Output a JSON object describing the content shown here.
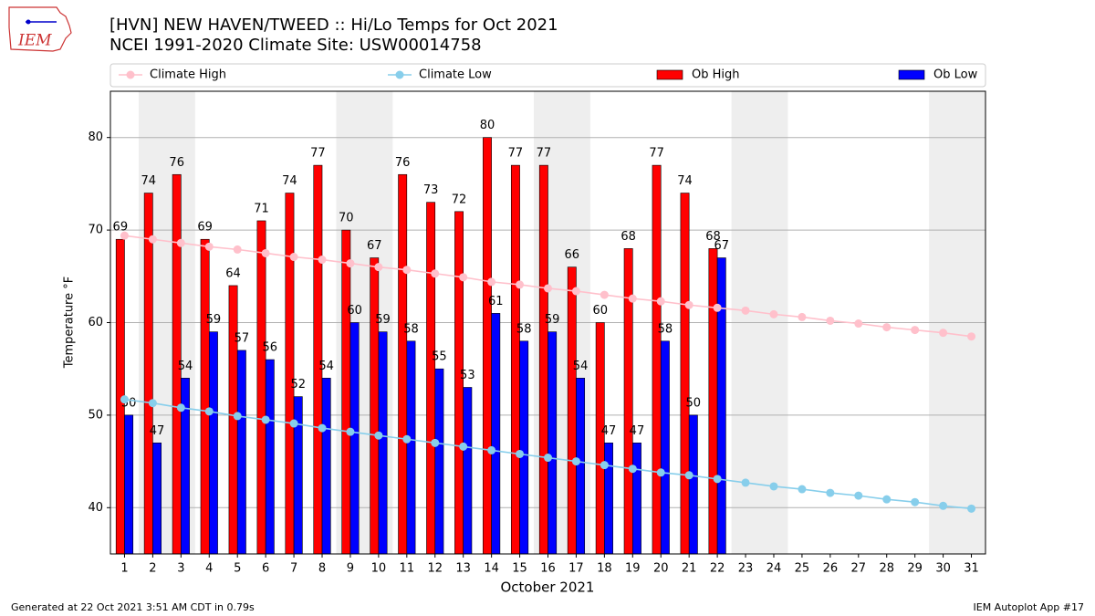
{
  "chart_data": {
    "type": "bar",
    "title": "[HVN] NEW HAVEN/TWEED :: Hi/Lo Temps for Oct 2021",
    "subtitle": "NCEI 1991-2020 Climate Site: USW00014758",
    "logo_text": "IEM",
    "x_label": "October 2021",
    "y_label": "Temperature °F",
    "footer_left": "Generated at 22 Oct 2021 3:51 AM CDT in 0.79s",
    "footer_right": "IEM Autoplot App #17",
    "x": [
      1,
      2,
      3,
      4,
      5,
      6,
      7,
      8,
      9,
      10,
      11,
      12,
      13,
      14,
      15,
      16,
      17,
      18,
      19,
      20,
      21,
      22,
      23,
      24,
      25,
      26,
      27,
      28,
      29,
      30,
      31
    ],
    "series": [
      {
        "name": "Climate High",
        "kind": "line",
        "color": "#ffc0cb",
        "values": [
          69.4,
          69.0,
          68.6,
          68.2,
          67.9,
          67.5,
          67.1,
          66.8,
          66.4,
          66.0,
          65.7,
          65.3,
          64.9,
          64.4,
          64.1,
          63.7,
          63.4,
          63.0,
          62.6,
          62.3,
          61.9,
          61.6,
          61.3,
          60.9,
          60.6,
          60.2,
          59.9,
          59.5,
          59.2,
          58.9,
          58.5
        ]
      },
      {
        "name": "Climate Low",
        "kind": "line",
        "color": "#87ceeb",
        "values": [
          51.7,
          51.3,
          50.8,
          50.4,
          49.9,
          49.5,
          49.1,
          48.6,
          48.2,
          47.8,
          47.4,
          47.0,
          46.6,
          46.2,
          45.8,
          45.4,
          45.0,
          44.6,
          44.2,
          43.8,
          43.5,
          43.1,
          42.7,
          42.3,
          42.0,
          41.6,
          41.3,
          40.9,
          40.6,
          40.2,
          39.9
        ]
      },
      {
        "name": "Ob High",
        "kind": "bar",
        "color": "#ff0000",
        "values": [
          69,
          74,
          76,
          69,
          64,
          71,
          74,
          77,
          70,
          67,
          76,
          73,
          72,
          80,
          77,
          77,
          66,
          60,
          68,
          77,
          74,
          68,
          null,
          null,
          null,
          null,
          null,
          null,
          null,
          null,
          null
        ]
      },
      {
        "name": "Ob Low",
        "kind": "bar",
        "color": "#0000ff",
        "values": [
          50,
          47,
          54,
          59,
          57,
          56,
          52,
          54,
          60,
          59,
          58,
          55,
          53,
          61,
          58,
          59,
          54,
          47,
          47,
          58,
          50,
          67,
          null,
          null,
          null,
          null,
          null,
          null,
          null,
          null,
          null
        ]
      }
    ],
    "shaded_ranges": [
      [
        1.5,
        3.5
      ],
      [
        8.5,
        10.5
      ],
      [
        15.5,
        17.5
      ],
      [
        22.5,
        24.5
      ],
      [
        29.5,
        31.5
      ]
    ],
    "xlim": [
      0.5,
      31.5
    ],
    "xticks": [
      1,
      2,
      3,
      4,
      5,
      6,
      7,
      8,
      9,
      10,
      11,
      12,
      13,
      14,
      15,
      16,
      17,
      18,
      19,
      20,
      21,
      22,
      23,
      24,
      25,
      26,
      27,
      28,
      29,
      30,
      31
    ],
    "ylim": [
      35,
      85
    ],
    "yticks": [
      40,
      50,
      60,
      70,
      80
    ],
    "grid": true,
    "legend": "top"
  }
}
